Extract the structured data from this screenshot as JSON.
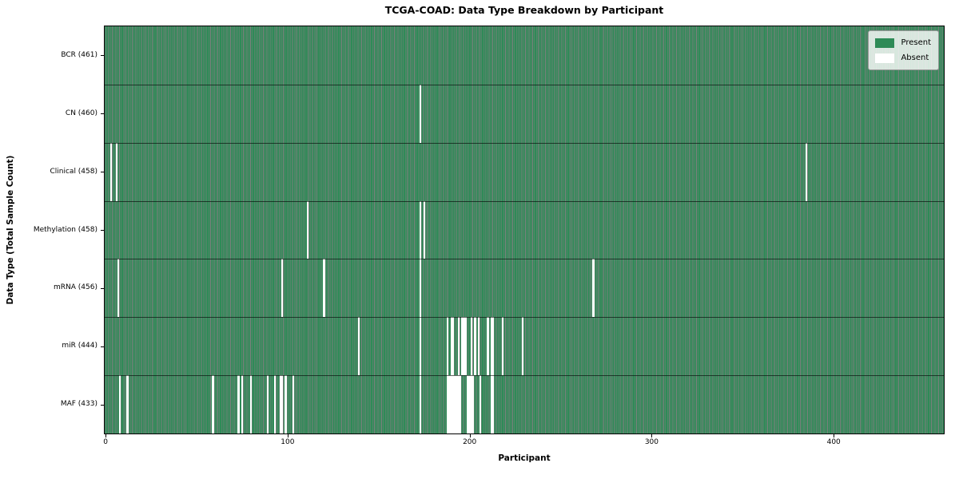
{
  "chart_data": {
    "type": "heatmap",
    "title": "TCGA-COAD: Data Type Breakdown by Participant",
    "xlabel": "Participant",
    "ylabel": "Data Type (Total Sample Count)",
    "x_ticks": [
      0,
      100,
      200,
      300,
      400
    ],
    "n_participants": 461,
    "xlim": [
      -0.5,
      460.5
    ],
    "present_color": "#2e8b57",
    "absent_color": "#ffffff",
    "cell_edge_color": "rgba(0,0,0,0.5)",
    "row_separator_color": "rgba(0,0,0,0.6)",
    "legend": {
      "position": "upper right",
      "entries": [
        {
          "label": "Present",
          "color": "#2e8b57"
        },
        {
          "label": "Absent",
          "color": "#ffffff"
        }
      ]
    },
    "rows": [
      {
        "data_type": "BCR",
        "label": "BCR (461)",
        "total": 461,
        "absent_participants": []
      },
      {
        "data_type": "CN",
        "label": "CN (460)",
        "total": 460,
        "absent_participants": [
          173
        ]
      },
      {
        "data_type": "Clinical",
        "label": "Clinical (458)",
        "total": 458,
        "absent_participants": [
          3,
          6,
          385
        ]
      },
      {
        "data_type": "Methylation",
        "label": "Methylation (458)",
        "total": 458,
        "absent_participants": [
          111,
          173,
          175
        ]
      },
      {
        "data_type": "mRNA",
        "label": "mRNA (456)",
        "total": 456,
        "absent_participants": [
          7,
          97,
          120,
          173,
          268
        ]
      },
      {
        "data_type": "miR",
        "label": "miR (444)",
        "total": 444,
        "absent_participants": [
          139,
          173,
          188,
          190,
          191,
          194,
          196,
          197,
          198,
          201,
          203,
          205,
          210,
          212,
          213,
          218,
          229
        ]
      },
      {
        "data_type": "MAF",
        "label": "MAF (433)",
        "total": 433,
        "absent_participants": [
          8,
          12,
          59,
          73,
          75,
          80,
          89,
          93,
          96,
          97,
          99,
          103,
          173,
          188,
          189,
          190,
          191,
          192,
          193,
          194,
          195,
          199,
          200,
          201,
          202,
          206,
          212,
          213
        ]
      }
    ]
  }
}
